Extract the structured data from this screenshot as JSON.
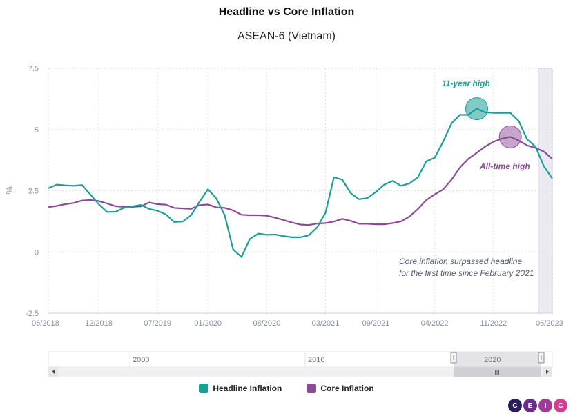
{
  "colors": {
    "headline": "#1a9e96",
    "core": "#8b4b94",
    "grid": "#dcdde3",
    "axis": "#8a8fa3",
    "highlight_band": "#eceaf1"
  },
  "chart_data": {
    "type": "line",
    "title": "Headline vs Core Inflation",
    "subtitle": "ASEAN-6 (Vietnam)",
    "ylabel": "%",
    "xlabel": "",
    "ylim": [
      -2.5,
      7.5
    ],
    "y_ticks": [
      "7.5",
      "5",
      "2.5",
      "0",
      "-2.5"
    ],
    "y_tick_values": [
      7.5,
      5,
      2.5,
      0,
      -2.5
    ],
    "x_range": [
      "06/2018",
      "06/2023"
    ],
    "x_ticks": [
      "06/2018",
      "12/2018",
      "07/2019",
      "01/2020",
      "08/2020",
      "03/2021",
      "09/2021",
      "04/2022",
      "11/2022",
      "06/2023"
    ],
    "x_tick_months": [
      0,
      6,
      13,
      19,
      26,
      33,
      39,
      46,
      53,
      60
    ],
    "series": [
      {
        "name": "Headline Inflation",
        "color": "#1a9e96",
        "values": [
          2.6,
          2.75,
          2.72,
          2.7,
          2.73,
          2.35,
          1.95,
          1.63,
          1.64,
          1.8,
          1.86,
          1.92,
          1.76,
          1.68,
          1.53,
          1.22,
          1.24,
          1.5,
          2.05,
          2.56,
          2.19,
          1.5,
          0.1,
          -0.2,
          0.53,
          0.75,
          0.7,
          0.71,
          0.65,
          0.6,
          0.6,
          0.68,
          1.0,
          1.6,
          3.05,
          2.95,
          2.4,
          2.15,
          2.2,
          2.45,
          2.75,
          2.9,
          2.7,
          2.8,
          3.05,
          3.7,
          3.85,
          4.5,
          5.25,
          5.6,
          5.6,
          5.85,
          5.7,
          5.68,
          5.68,
          5.68,
          5.35,
          4.6,
          4.3,
          3.5,
          3.0
        ]
      },
      {
        "name": "Core Inflation",
        "color": "#8b4b94",
        "values": [
          1.83,
          1.88,
          1.95,
          2.0,
          2.1,
          2.12,
          2.08,
          1.98,
          1.87,
          1.84,
          1.84,
          1.86,
          2.02,
          1.95,
          1.93,
          1.8,
          1.78,
          1.76,
          1.91,
          1.94,
          1.82,
          1.8,
          1.7,
          1.52,
          1.5,
          1.5,
          1.48,
          1.4,
          1.3,
          1.2,
          1.12,
          1.1,
          1.16,
          1.18,
          1.24,
          1.35,
          1.27,
          1.15,
          1.15,
          1.13,
          1.13,
          1.18,
          1.25,
          1.45,
          1.75,
          2.12,
          2.35,
          2.55,
          2.95,
          3.45,
          3.8,
          4.05,
          4.3,
          4.5,
          4.63,
          4.7,
          4.55,
          4.35,
          4.25,
          4.1,
          3.8
        ]
      }
    ],
    "highlight_band": {
      "from_month": 58,
      "to_month": 60
    },
    "annotations": [
      {
        "text": "11-year high",
        "series": "Headline Inflation",
        "month": 51,
        "value": 5.85
      },
      {
        "text": "All-time high",
        "series": "Core Inflation",
        "month": 55,
        "value": 4.7
      },
      {
        "text": "Core inflation surpassed headline",
        "month": 57,
        "value": 0
      },
      {
        "text": "for the first time since February 2021",
        "month": 57,
        "value": 0
      }
    ],
    "grid": true,
    "legend_position": "bottom-center"
  },
  "navigator": {
    "labels": [
      "2000",
      "2010",
      "2020"
    ],
    "scroll_handle": "III"
  },
  "legend": {
    "items": [
      {
        "label": "Headline Inflation",
        "color": "#1a9e96"
      },
      {
        "label": "Core Inflation",
        "color": "#8b4b94"
      }
    ]
  },
  "logo": {
    "letters": [
      "C",
      "E",
      "I",
      "C"
    ],
    "colors": [
      "#2b1d5c",
      "#6a2c8f",
      "#a33a9b",
      "#d23f8e"
    ]
  }
}
